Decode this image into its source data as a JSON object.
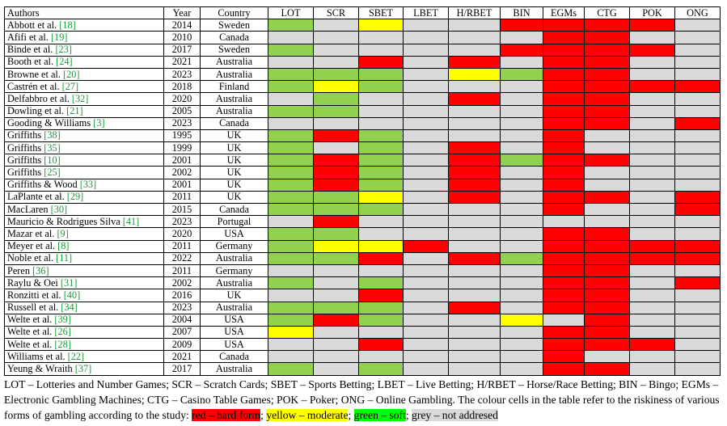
{
  "table": {
    "headers": [
      "Authors",
      "Year",
      "Country",
      "LOT",
      "SCR",
      "SBET",
      "LBET",
      "H/RBET",
      "BIN",
      "EGMs",
      "CTG",
      "POK",
      "ONG"
    ],
    "rows": [
      {
        "author": "Abbott et al.",
        "ref": "[18]",
        "year": "2014",
        "country": "Sweden",
        "cells": [
          "g",
          "n",
          "y",
          "n",
          "n",
          "r",
          "r",
          "r",
          "r",
          "n"
        ]
      },
      {
        "author": "Afifi et al.",
        "ref": "[19]",
        "year": "2010",
        "country": "Canada",
        "cells": [
          "n",
          "n",
          "n",
          "n",
          "n",
          "n",
          "r",
          "r",
          "n",
          "n"
        ]
      },
      {
        "author": "Binde et al.",
        "ref": "[23]",
        "year": "2017",
        "country": "Sweden",
        "cells": [
          "g",
          "n",
          "n",
          "n",
          "n",
          "r",
          "r",
          "r",
          "r",
          "n"
        ]
      },
      {
        "author": "Booth et al.",
        "ref": "[24]",
        "year": "2021",
        "country": "Australia",
        "cells": [
          "n",
          "n",
          "r",
          "n",
          "r",
          "n",
          "r",
          "r",
          "n",
          "n"
        ]
      },
      {
        "author": "Browne et al.",
        "ref": "[20]",
        "year": "2023",
        "country": "Australia",
        "cells": [
          "g",
          "g",
          "g",
          "n",
          "y",
          "g",
          "r",
          "r",
          "n",
          "n"
        ]
      },
      {
        "author": "Castrén et al.",
        "ref": "[27]",
        "year": "2018",
        "country": "Finland",
        "cells": [
          "g",
          "y",
          "g",
          "n",
          "n",
          "n",
          "r",
          "r",
          "r",
          "r"
        ]
      },
      {
        "author": "Delfabbro et al.",
        "ref": "[32]",
        "year": "2020",
        "country": "Australia",
        "cells": [
          "n",
          "g",
          "n",
          "n",
          "r",
          "n",
          "r",
          "r",
          "n",
          "n"
        ]
      },
      {
        "author": "Dowling et al.",
        "ref": "[21]",
        "year": "2005",
        "country": "Australia",
        "cells": [
          "g",
          "g",
          "n",
          "n",
          "n",
          "n",
          "r",
          "r",
          "n",
          "n"
        ]
      },
      {
        "author": "Gooding & Williams",
        "ref": "[3]",
        "year": "2023",
        "country": "Canada",
        "cells": [
          "n",
          "n",
          "n",
          "n",
          "n",
          "n",
          "r",
          "r",
          "n",
          "r"
        ]
      },
      {
        "author": "Griffiths",
        "ref": "[38]",
        "year": "1995",
        "country": "UK",
        "cells": [
          "g",
          "r",
          "g",
          "n",
          "n",
          "n",
          "r",
          "n",
          "n",
          "n"
        ]
      },
      {
        "author": "Griffiths",
        "ref": "[35]",
        "year": "1999",
        "country": "UK",
        "cells": [
          "g",
          "n",
          "g",
          "n",
          "r",
          "n",
          "r",
          "n",
          "n",
          "n"
        ]
      },
      {
        "author": "Griffiths",
        "ref": "[10]",
        "year": "2001",
        "country": "UK",
        "cells": [
          "g",
          "r",
          "g",
          "n",
          "r",
          "g",
          "r",
          "r",
          "n",
          "n"
        ]
      },
      {
        "author": "Griffiths",
        "ref": "[25]",
        "year": "2002",
        "country": "UK",
        "cells": [
          "g",
          "r",
          "g",
          "n",
          "r",
          "n",
          "r",
          "n",
          "n",
          "n"
        ]
      },
      {
        "author": "Griffiths & Wood",
        "ref": "[33]",
        "year": "2001",
        "country": "UK",
        "cells": [
          "g",
          "r",
          "g",
          "n",
          "r",
          "n",
          "r",
          "n",
          "n",
          "n"
        ]
      },
      {
        "author": "LaPlante et al.",
        "ref": "[29]",
        "year": "2011",
        "country": "UK",
        "cells": [
          "g",
          "g",
          "y",
          "n",
          "r",
          "n",
          "r",
          "r",
          "n",
          "r"
        ]
      },
      {
        "author": "MacLaren",
        "ref": "[30]",
        "year": "2015",
        "country": "Canada",
        "cells": [
          "g",
          "g",
          "g",
          "n",
          "n",
          "n",
          "r",
          "n",
          "n",
          "r"
        ]
      },
      {
        "author": "Mauricio & Rodrigues Silva",
        "ref": "[41]",
        "year": "2023",
        "country": "Portugal",
        "cells": [
          "n",
          "r",
          "n",
          "n",
          "n",
          "n",
          "n",
          "n",
          "n",
          "n"
        ]
      },
      {
        "author": "Mazar et al.",
        "ref": "[9]",
        "year": "2020",
        "country": "USA",
        "cells": [
          "g",
          "g",
          "n",
          "n",
          "n",
          "n",
          "r",
          "r",
          "n",
          "n"
        ]
      },
      {
        "author": "Meyer et al.",
        "ref": "[8]",
        "year": "2011",
        "country": "Germany",
        "cells": [
          "g",
          "y",
          "y",
          "r",
          "n",
          "n",
          "r",
          "r",
          "r",
          "r"
        ]
      },
      {
        "author": "Noble et al.",
        "ref": "[11]",
        "year": "2022",
        "country": "Australia",
        "cells": [
          "g",
          "g",
          "r",
          "n",
          "r",
          "g",
          "r",
          "r",
          "r",
          "r"
        ]
      },
      {
        "author": "Peren",
        "ref": "[36]",
        "year": "2011",
        "country": "Germany",
        "cells": [
          "n",
          "n",
          "n",
          "n",
          "n",
          "n",
          "r",
          "r",
          "n",
          "n"
        ]
      },
      {
        "author": "Raylu & Oei",
        "ref": "[31]",
        "year": "2002",
        "country": "Australia",
        "cells": [
          "g",
          "n",
          "g",
          "n",
          "n",
          "n",
          "r",
          "r",
          "n",
          "r"
        ]
      },
      {
        "author": "Ronzitti et al.",
        "ref": "[40]",
        "year": "2016",
        "country": "UK",
        "cells": [
          "n",
          "n",
          "r",
          "n",
          "n",
          "n",
          "r",
          "r",
          "n",
          "n"
        ]
      },
      {
        "author": "Russell et al.",
        "ref": "[34]",
        "year": "2023",
        "country": "Australia",
        "cells": [
          "g",
          "g",
          "g",
          "n",
          "r",
          "n",
          "r",
          "r",
          "n",
          "n"
        ]
      },
      {
        "author": "Welte et al.",
        "ref": "[39]",
        "year": "2004",
        "country": "USA",
        "cells": [
          "g",
          "r",
          "g",
          "n",
          "n",
          "y",
          "n",
          "r",
          "n",
          "n"
        ]
      },
      {
        "author": "Welte et al.",
        "ref": "[26]",
        "year": "2007",
        "country": "USA",
        "cells": [
          "y",
          "n",
          "n",
          "n",
          "n",
          "n",
          "r",
          "r",
          "n",
          "n"
        ]
      },
      {
        "author": "Welte et al.",
        "ref": "[28]",
        "year": "2009",
        "country": "USA",
        "cells": [
          "n",
          "n",
          "r",
          "n",
          "n",
          "n",
          "r",
          "r",
          "r",
          "n"
        ]
      },
      {
        "author": "Williams et al.",
        "ref": "[22]",
        "year": "2021",
        "country": "Canada",
        "cells": [
          "n",
          "n",
          "n",
          "n",
          "n",
          "n",
          "r",
          "n",
          "n",
          "n"
        ]
      },
      {
        "author": "Yeung & Wraith",
        "ref": "[37]",
        "year": "2017",
        "country": "Australia",
        "cells": [
          "g",
          "n",
          "g",
          "n",
          "n",
          "n",
          "r",
          "r",
          "n",
          "n"
        ]
      }
    ]
  },
  "caption": {
    "text": "LOT – Lotteries and Number Games; SCR – Scratch Cards; SBET – Sports Betting; LBET – Live Betting; H/RBET – Horse/Race Betting; BIN – Bingo; EGMs – Electronic Gambling Machines; CTG – Casino Table Games; POK – Poker; ONG – Online Gambling. The colour cells in the table refer to the riskiness of various forms of gambling according to the study: ",
    "legend_red": "red – hard form",
    "sep1": "; ",
    "legend_yellow": "yellow – moderate",
    "sep2": "; ",
    "legend_green": "green – soft",
    "sep3": "; ",
    "legend_grey": "grey – not addresed"
  },
  "colors": {
    "r": "#ff0000",
    "y": "#ffff00",
    "g": "#92d050",
    "n": "#d9d9d9",
    "ref": "#1a9a3a"
  }
}
